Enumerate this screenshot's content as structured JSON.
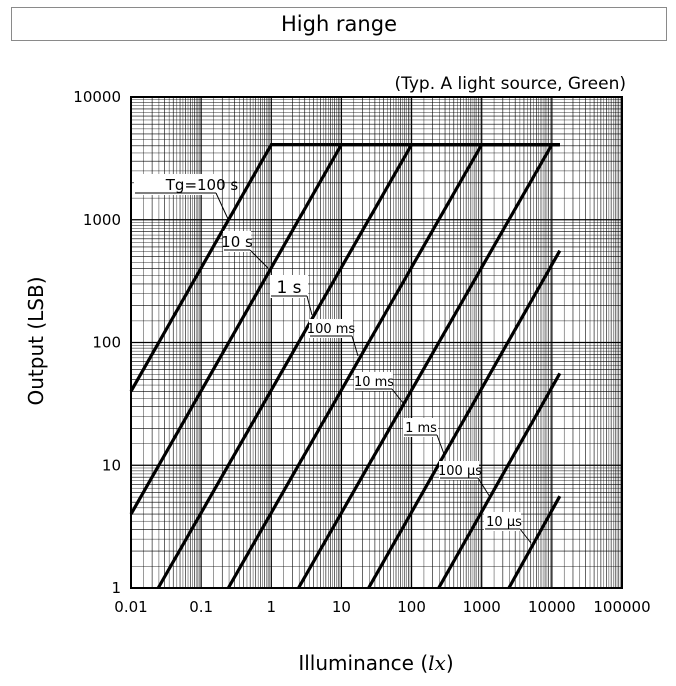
{
  "chart_data": {
    "type": "line",
    "title": "High range",
    "subtitle": "(Typ. A light source, Green)",
    "xlabel": "Illuminance",
    "xlabel_unit": "lx",
    "ylabel": "Output (LSB)",
    "x_scale": "log",
    "y_scale": "log",
    "xlim": [
      0.01,
      100000
    ],
    "ylim": [
      1,
      10000
    ],
    "x_ticks": [
      "0.01",
      "0.1",
      "1",
      "10",
      "100",
      "1000",
      "10000",
      "100000"
    ],
    "y_ticks": [
      "1",
      "10",
      "100",
      "1000",
      "10000"
    ],
    "grid": true,
    "saturation_level": 4095,
    "series": [
      {
        "name": "Tg=100 s",
        "x": [
          0.01,
          1,
          13000
        ],
        "y": [
          40,
          4095,
          4095
        ]
      },
      {
        "name": "10 s",
        "x": [
          0.01,
          10,
          13000
        ],
        "y": [
          4,
          4095,
          4095
        ]
      },
      {
        "name": "1 s",
        "x": [
          0.0244,
          100,
          13000
        ],
        "y": [
          1,
          4095,
          4095
        ]
      },
      {
        "name": "100 ms",
        "x": [
          0.244,
          1000,
          13000
        ],
        "y": [
          1,
          4095,
          4095
        ]
      },
      {
        "name": "10 ms",
        "x": [
          2.44,
          10000,
          13000
        ],
        "y": [
          1,
          4095,
          4095
        ]
      },
      {
        "name": "1 ms",
        "x": [
          24.4,
          13000
        ],
        "y": [
          1,
          560
        ]
      },
      {
        "name": "100 µs",
        "x": [
          244,
          13000
        ],
        "y": [
          1,
          56
        ]
      },
      {
        "name": "10 µs",
        "x": [
          2440,
          13000
        ],
        "y": [
          1,
          5.6
        ]
      }
    ]
  }
}
